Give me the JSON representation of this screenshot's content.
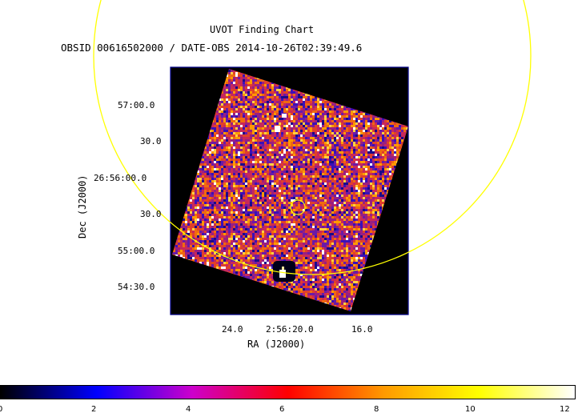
{
  "header": {
    "title": "UVOT Finding Chart",
    "subtitle": "OBSID 00616502000 / DATE-OBS 2014-10-26T02:39:49.6"
  },
  "axes": {
    "xlabel": "RA (J2000)",
    "ylabel": "Dec (J2000)",
    "ra_ticks": [
      "24.0",
      "2:56:20.0",
      "16.0"
    ],
    "dec_ticks": [
      "57:00.0",
      "30.0",
      "26:56:00.0",
      "30.0",
      "55:00.0",
      "54:30.0"
    ]
  },
  "colorbar": {
    "labels": [
      "0",
      "2",
      "4",
      "6",
      "8",
      "10",
      "12"
    ],
    "min": 0,
    "max": 12,
    "colors": [
      "#000000",
      "#0000ff",
      "#cc00cc",
      "#ff0000",
      "#ff9900",
      "#ffff00",
      "#ffffff"
    ]
  },
  "overlays": {
    "large_circle_color": "#ffff00",
    "small_circle_color": "#ffff00",
    "frame_color": "#00008b"
  }
}
